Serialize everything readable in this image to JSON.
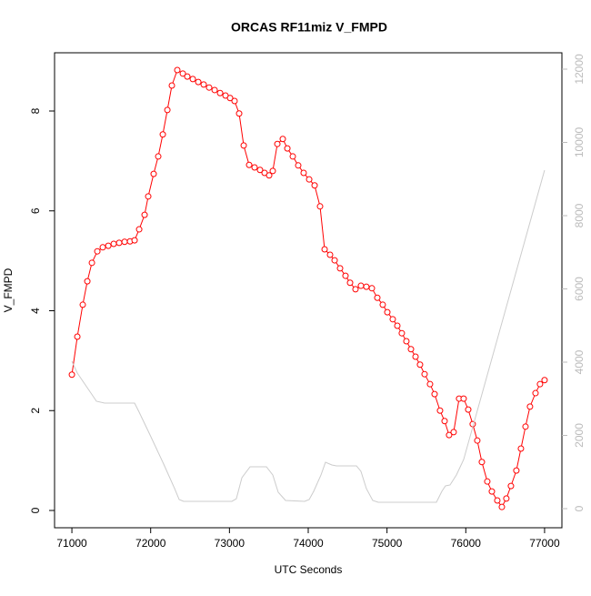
{
  "chart_data": {
    "type": "line",
    "title": "ORCAS RF11miz V_FMPD",
    "x_label": "UTC Seconds",
    "y_label": "V_FMPD",
    "xlim": [
      70780,
      77220
    ],
    "xticks": [
      71000,
      72000,
      73000,
      74000,
      75000,
      76000,
      77000
    ],
    "ylim": [
      -0.346,
      9.166
    ],
    "yticks": [
      0,
      2,
      4,
      6,
      8
    ],
    "y2lim": [
      -522,
      12447
    ],
    "y2ticks": [
      0,
      2000,
      4000,
      6000,
      8000,
      10000,
      12000
    ],
    "series": [
      {
        "color": "#ff0000",
        "markers": true,
        "x": [
          71000,
          71069,
          71138,
          71196,
          71254,
          71323,
          71392,
          71462,
          71531,
          71600,
          71669,
          71738,
          71796,
          71854,
          71923,
          71969,
          72038,
          72096,
          72154,
          72212,
          72269,
          72338,
          72408,
          72465,
          72535,
          72604,
          72673,
          72742,
          72812,
          72881,
          72950,
          73008,
          73065,
          73123,
          73181,
          73250,
          73319,
          73388,
          73446,
          73504,
          73550,
          73608,
          73677,
          73735,
          73804,
          73873,
          73942,
          74012,
          74081,
          74150,
          74208,
          74277,
          74335,
          74404,
          74473,
          74531,
          74600,
          74669,
          74738,
          74808,
          74877,
          74946,
          75004,
          75073,
          75131,
          75188,
          75246,
          75304,
          75362,
          75419,
          75477,
          75546,
          75604,
          75673,
          75731,
          75788,
          75846,
          75915,
          75973,
          76031,
          76088,
          76146,
          76204,
          76273,
          76331,
          76400,
          76458,
          76515,
          76573,
          76642,
          76700,
          76758,
          76815,
          76885,
          76942,
          77000
        ],
        "values": [
          2.72,
          3.48,
          4.12,
          4.59,
          4.96,
          5.19,
          5.27,
          5.3,
          5.34,
          5.36,
          5.38,
          5.39,
          5.41,
          5.63,
          5.92,
          6.29,
          6.74,
          7.09,
          7.53,
          8.02,
          8.51,
          8.82,
          8.75,
          8.69,
          8.64,
          8.58,
          8.53,
          8.47,
          8.42,
          8.36,
          8.31,
          8.26,
          8.2,
          7.95,
          7.31,
          6.92,
          6.87,
          6.82,
          6.76,
          6.71,
          6.8,
          7.34,
          7.44,
          7.25,
          7.09,
          6.91,
          6.76,
          6.63,
          6.51,
          6.09,
          5.23,
          5.12,
          5.01,
          4.85,
          4.7,
          4.56,
          4.43,
          4.5,
          4.48,
          4.45,
          4.26,
          4.12,
          3.97,
          3.83,
          3.7,
          3.55,
          3.39,
          3.23,
          3.08,
          2.92,
          2.73,
          2.53,
          2.33,
          2.0,
          1.79,
          1.51,
          1.57,
          2.24,
          2.24,
          2.02,
          1.73,
          1.4,
          0.97,
          0.58,
          0.38,
          0.2,
          0.07,
          0.24,
          0.49,
          0.8,
          1.24,
          1.68,
          2.08,
          2.35,
          2.53,
          2.61
        ]
      },
      {
        "color": "#cccccc",
        "axis": "y2",
        "markers": false,
        "x": [
          71000,
          71069,
          71242,
          71312,
          71415,
          71796,
          71854,
          71992,
          72165,
          72304,
          72362,
          72419,
          73031,
          73088,
          73158,
          73262,
          73469,
          73550,
          73619,
          73712,
          73954,
          74012,
          74069,
          74162,
          74219,
          74300,
          74358,
          74612,
          74669,
          74738,
          74819,
          74888,
          75627,
          75696,
          75742,
          75800,
          75881,
          75973,
          77000
        ],
        "values": [
          4025,
          3702,
          3155,
          2932,
          2882,
          2882,
          2634,
          2012,
          1217,
          547,
          248,
          199,
          199,
          273,
          845,
          1143,
          1143,
          919,
          447,
          224,
          199,
          248,
          472,
          919,
          1267,
          1193,
          1168,
          1168,
          1019,
          547,
          224,
          174,
          174,
          472,
          621,
          646,
          919,
          1342,
          9242
        ]
      }
    ]
  }
}
